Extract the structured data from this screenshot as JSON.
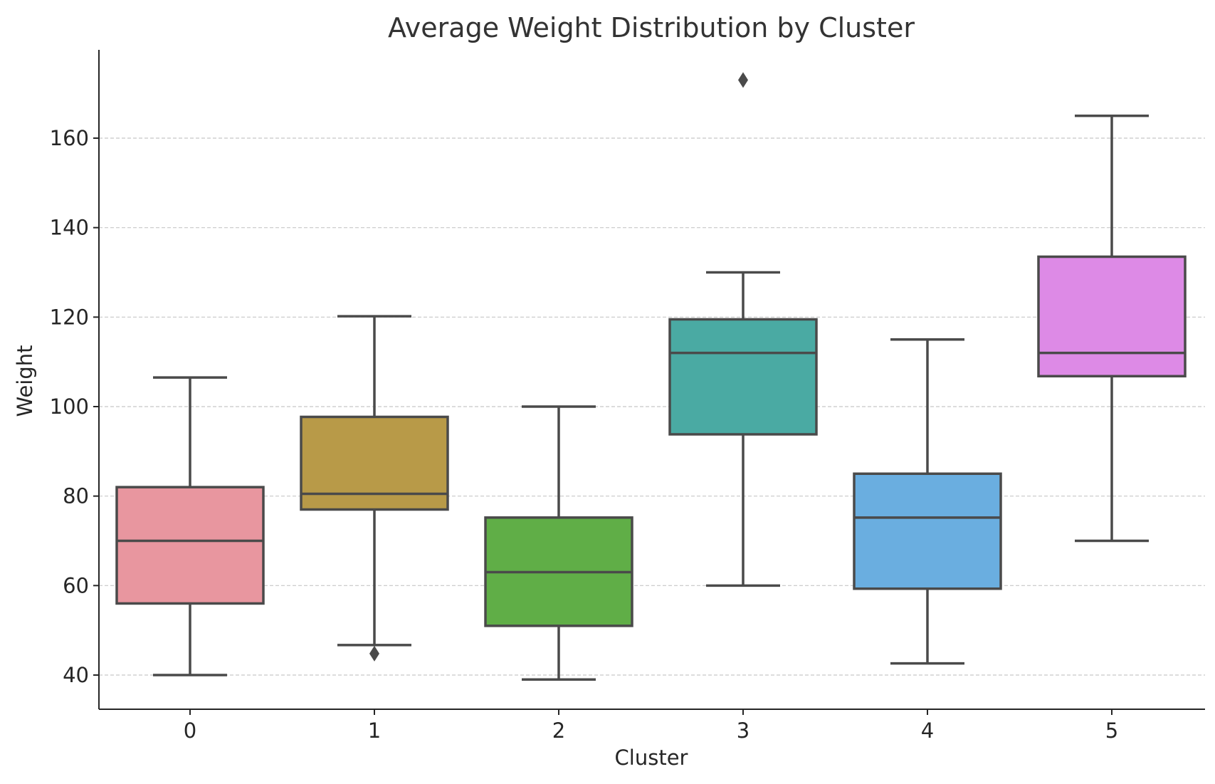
{
  "chart_data": {
    "type": "box",
    "title": "Average Weight Distribution by Cluster",
    "xlabel": "Cluster",
    "ylabel": "Weight",
    "ylim": [
      32.5,
      179
    ],
    "yticks": [
      40,
      60,
      80,
      100,
      120,
      140,
      160
    ],
    "grid": "y-dashed",
    "categories": [
      "0",
      "1",
      "2",
      "3",
      "4",
      "5"
    ],
    "colors": [
      "#e8969f",
      "#b89a48",
      "#60ae47",
      "#4aaaa3",
      "#6aaee0",
      "#dd8ae6"
    ],
    "boxes": [
      {
        "category": "0",
        "whisker_low": 40,
        "q1": 56,
        "median": 70,
        "q3": 82,
        "whisker_high": 106.5,
        "outliers": []
      },
      {
        "category": "1",
        "whisker_low": 46.7,
        "q1": 77,
        "median": 80.5,
        "q3": 97.7,
        "whisker_high": 120.2,
        "outliers": [
          44.8
        ]
      },
      {
        "category": "2",
        "whisker_low": 39,
        "q1": 51,
        "median": 63,
        "q3": 75.2,
        "whisker_high": 100,
        "outliers": []
      },
      {
        "category": "3",
        "whisker_low": 60,
        "q1": 93.8,
        "median": 112,
        "q3": 119.5,
        "whisker_high": 130,
        "outliers": [
          173
        ]
      },
      {
        "category": "4",
        "whisker_low": 42.6,
        "q1": 59.3,
        "median": 75.2,
        "q3": 85,
        "whisker_high": 115,
        "outliers": []
      },
      {
        "category": "5",
        "whisker_low": 70,
        "q1": 106.8,
        "median": 112,
        "q3": 133.5,
        "whisker_high": 165,
        "outliers": []
      }
    ]
  }
}
